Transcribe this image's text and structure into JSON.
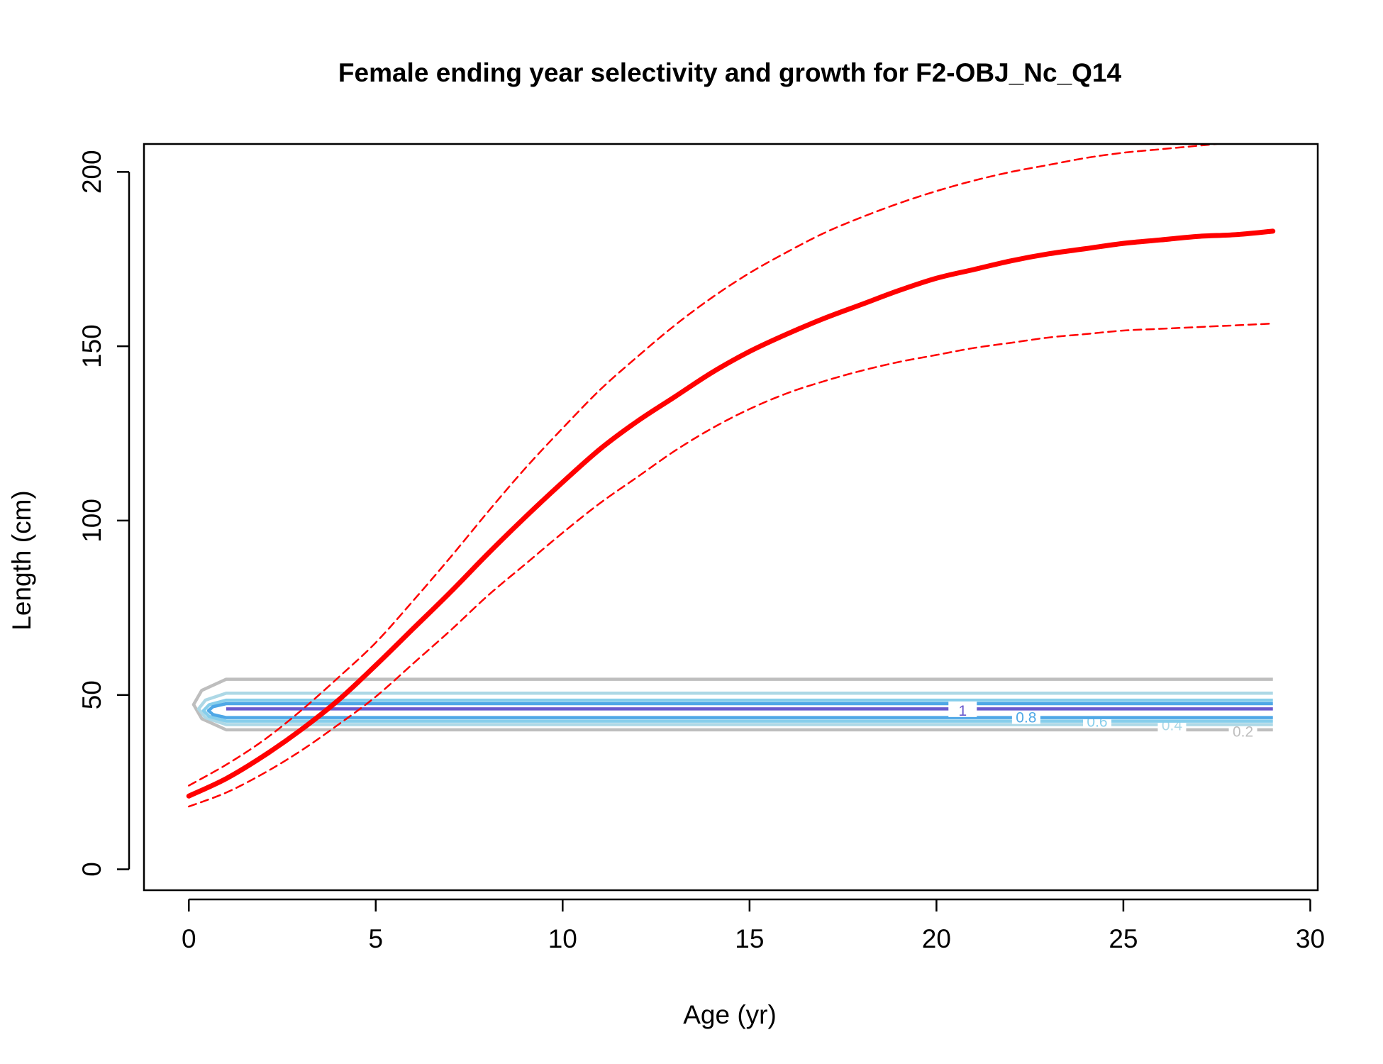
{
  "chart_data": {
    "type": "line",
    "title": "Female ending year selectivity and growth for F2-OBJ_Nc_Q14",
    "xlabel": "Age (yr)",
    "ylabel": "Length (cm)",
    "xlim": [
      -1.2,
      30.2
    ],
    "ylim": [
      -6,
      208
    ],
    "xticks": [
      0,
      5,
      10,
      15,
      20,
      25,
      30
    ],
    "yticks": [
      0,
      50,
      100,
      150,
      200
    ],
    "grid": false,
    "legend": "none",
    "series": [
      {
        "role": "mean",
        "color": "#ff0000",
        "style": "solid-thick",
        "x": [
          0,
          1,
          2,
          3,
          4,
          5,
          6,
          7,
          8,
          9,
          10,
          11,
          12,
          13,
          14,
          15,
          16,
          17,
          18,
          19,
          20,
          21,
          22,
          23,
          24,
          25,
          26,
          27,
          28,
          29
        ],
        "y": [
          21,
          26,
          32.5,
          40,
          48.5,
          58.5,
          69,
          79.5,
          90.5,
          101,
          111,
          120.5,
          128.5,
          135.5,
          142.5,
          148.5,
          153.5,
          158,
          162,
          166,
          169.5,
          172,
          174.5,
          176.5,
          178,
          179.5,
          180.5,
          181.5,
          182,
          183
        ]
      },
      {
        "role": "upper",
        "color": "#ff0000",
        "style": "dashed",
        "x": [
          0,
          1,
          2,
          3,
          4,
          5,
          6,
          7,
          8,
          9,
          10,
          11,
          12,
          13,
          14,
          15,
          16,
          17,
          18,
          19,
          20,
          21,
          22,
          23,
          24,
          25,
          26,
          27,
          28,
          29
        ],
        "y": [
          24,
          30,
          37,
          45.5,
          55,
          65,
          77,
          89.5,
          102.5,
          115,
          126.5,
          137.5,
          147,
          156,
          164,
          171,
          177,
          182.5,
          187,
          191,
          194.5,
          197.5,
          200,
          202,
          204,
          205.5,
          206.5,
          207.5,
          208.5,
          209
        ]
      },
      {
        "role": "lower",
        "color": "#ff0000",
        "style": "dashed",
        "x": [
          0,
          1,
          2,
          3,
          4,
          5,
          6,
          7,
          8,
          9,
          10,
          11,
          12,
          13,
          14,
          15,
          16,
          17,
          18,
          19,
          20,
          21,
          22,
          23,
          24,
          25,
          26,
          27,
          28,
          29
        ],
        "y": [
          18,
          22,
          27.5,
          34,
          41.5,
          49.5,
          59,
          68.5,
          78.5,
          87.5,
          96.5,
          105,
          112.5,
          120,
          126.5,
          132,
          136.5,
          140,
          143,
          145.5,
          147.5,
          149.5,
          151,
          152.5,
          153.5,
          154.5,
          155,
          155.5,
          156,
          156.5
        ]
      }
    ],
    "contours": [
      {
        "level": "0.2",
        "color": "#bebebe",
        "y_low": 40,
        "y_high": 54.5,
        "x_start": 1,
        "x_end": 29,
        "label_x": 28.2,
        "label_y": 39.5
      },
      {
        "level": "0.4",
        "color": "#add8e6",
        "y_low": 41.5,
        "y_high": 50.5,
        "x_start": 1,
        "x_end": 29,
        "label_x": 26.3,
        "label_y": 41.3
      },
      {
        "level": "0.6",
        "color": "#87ceeb",
        "y_low": 42.5,
        "y_high": 48.5,
        "x_start": 1,
        "x_end": 29,
        "label_x": 24.3,
        "label_y": 42.3
      },
      {
        "level": "0.8",
        "color": "#4ea7e6",
        "y_low": 43.5,
        "y_high": 47.5,
        "x_start": 1,
        "x_end": 29,
        "label_x": 22.4,
        "label_y": 43.5
      },
      {
        "level": "1",
        "color": "#6a5acd",
        "y_low": 46,
        "y_high": 46,
        "x_start": 1,
        "x_end": 29,
        "label_x": 20.7,
        "label_y": 45.5
      }
    ]
  }
}
